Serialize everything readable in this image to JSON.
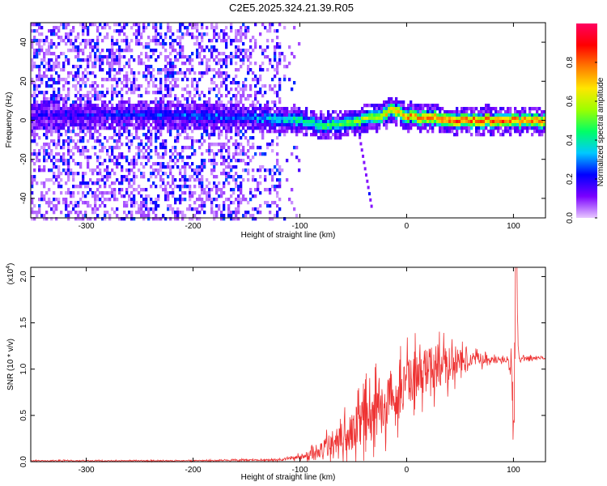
{
  "title": "C2E5.2025.324.21.39.R05",
  "chart_data": [
    {
      "type": "heatmap",
      "xlabel": "Height of straight line (km)",
      "ylabel": "Frequency (Hz)",
      "xlim": [
        -352,
        130
      ],
      "ylim": [
        -50,
        50
      ],
      "xticks": [
        -300,
        -200,
        -100,
        0,
        100
      ],
      "yticks": [
        -40,
        -20,
        0,
        20,
        40
      ],
      "colorbar": {
        "label": "Normalized spectral amplitude",
        "range": [
          0.0,
          1.0
        ],
        "ticks": [
          0.0,
          0.2,
          0.4,
          0.6,
          0.8
        ],
        "colors": [
          "#e8c8ff",
          "#7a00ff",
          "#0000ff",
          "#00c8ff",
          "#00ff66",
          "#9cff00",
          "#ffe600",
          "#ff7a00",
          "#ff0000",
          "#ff0060"
        ]
      },
      "ridge": {
        "description_points_x": [
          -352,
          -250,
          -150,
          -100,
          -80,
          -50,
          -20,
          -15,
          0,
          50,
          130
        ],
        "description_points_y": [
          3,
          4,
          2,
          1,
          -2,
          0,
          4,
          6,
          3,
          1,
          0
        ],
        "amplitude": [
          0.2,
          0.25,
          0.3,
          0.45,
          0.5,
          0.55,
          0.7,
          0.75,
          0.8,
          0.9,
          0.85
        ]
      }
    },
    {
      "type": "line",
      "xlabel": "Height of straight line (km)",
      "ylabel": "SNR (10 * v/v)",
      "multiplier": "(x10",
      "multiplier_exp": "4",
      "multiplier_close": ")",
      "xlim": [
        -352,
        130
      ],
      "ylim": [
        0,
        2.1
      ],
      "xticks": [
        -300,
        -200,
        -100,
        0,
        100
      ],
      "yticks": [
        0.0,
        0.5,
        1.0,
        1.5,
        2.0
      ],
      "ytick_labels": [
        "0.0",
        "0.5",
        "1.0",
        "1.5",
        "2.0"
      ],
      "color": "#ee3333",
      "envelope": {
        "x": [
          -352,
          -200,
          -120,
          -100,
          -80,
          -60,
          -40,
          -20,
          0,
          20,
          40,
          60,
          80,
          95,
          101,
          103,
          105,
          110,
          130
        ],
        "base": [
          0.01,
          0.01,
          0.02,
          0.05,
          0.12,
          0.25,
          0.45,
          0.62,
          0.85,
          1.0,
          1.05,
          1.12,
          1.1,
          1.1,
          0.9,
          1.8,
          1.1,
          1.12,
          1.12
        ],
        "amp": [
          0.01,
          0.01,
          0.02,
          0.05,
          0.2,
          0.35,
          0.5,
          0.55,
          0.5,
          0.45,
          0.4,
          0.15,
          0.08,
          0.06,
          0.8,
          0.2,
          0.05,
          0.04,
          0.03
        ]
      }
    }
  ]
}
